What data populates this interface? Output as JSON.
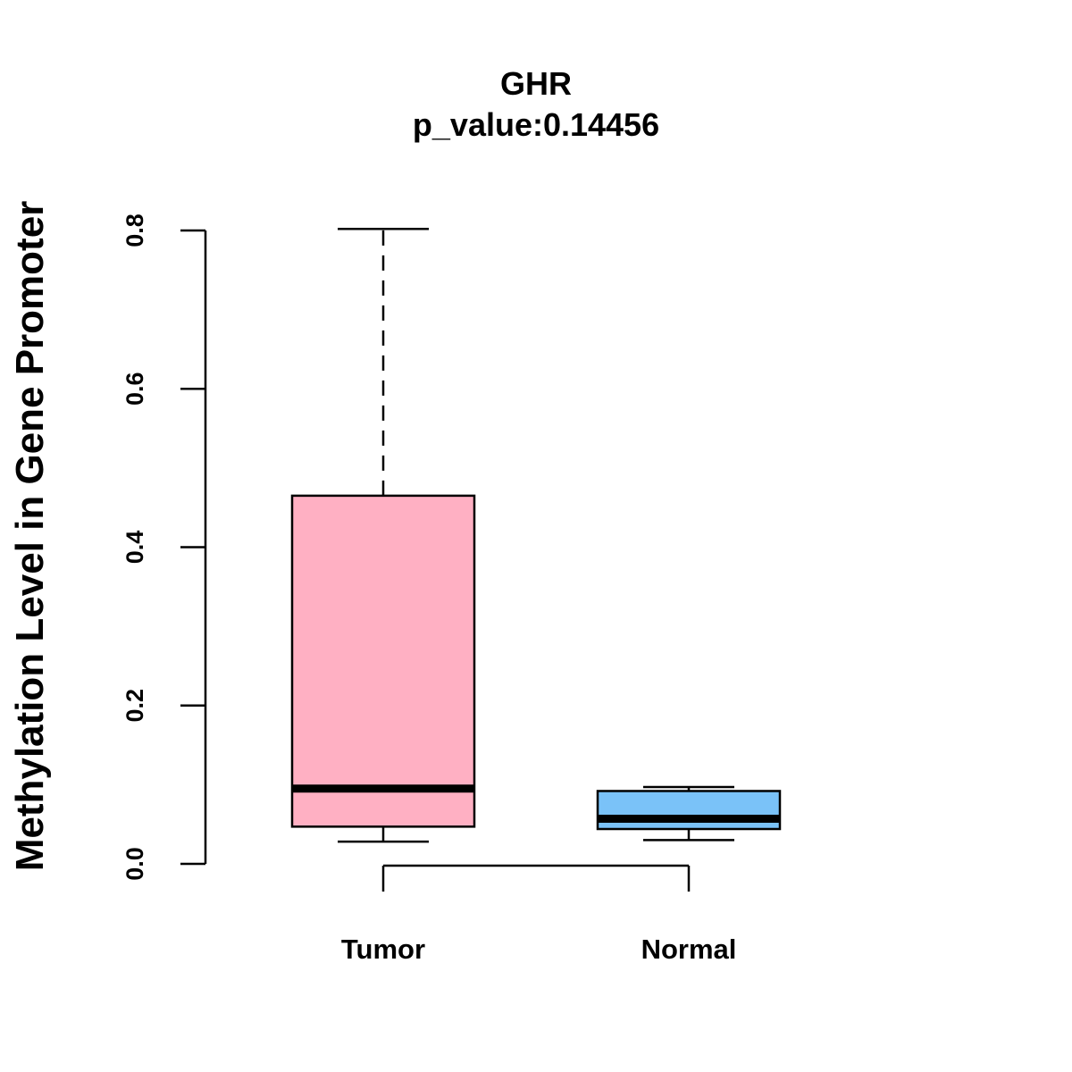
{
  "chart_data": {
    "type": "box",
    "title": "GHR",
    "subtitle": "p_value:0.14456",
    "ylabel": "Methylation Level in Gene Promoter",
    "xlabel": "",
    "ylim": [
      0,
      0.8
    ],
    "yticks": [
      0.0,
      0.2,
      0.4,
      0.6,
      0.8
    ],
    "ytick_labels": [
      "0.0",
      "0.2",
      "0.4",
      "0.6",
      "0.8"
    ],
    "grid": false,
    "categories": [
      "Tumor",
      "Normal"
    ],
    "boxes": [
      {
        "category": "Tumor",
        "min": 0.028,
        "q1": 0.047,
        "median": 0.095,
        "q3": 0.465,
        "max": 0.802,
        "color": "#FFB0C3"
      },
      {
        "category": "Normal",
        "min": 0.03,
        "q1": 0.044,
        "median": 0.057,
        "q3": 0.092,
        "max": 0.097,
        "color": "#7AC2F8"
      }
    ],
    "comparison_bracket": [
      "Tumor",
      "Normal"
    ]
  }
}
